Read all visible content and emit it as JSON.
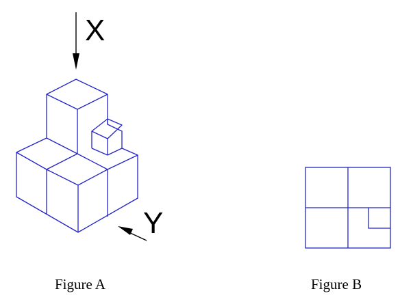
{
  "figure_a": {
    "caption": "Figure A",
    "view_label_x": "X",
    "view_label_y": "Y"
  },
  "figure_b": {
    "caption": "Figure B"
  },
  "colors": {
    "line": "#2323c8",
    "arrow": "#000000",
    "text": "#000000"
  }
}
